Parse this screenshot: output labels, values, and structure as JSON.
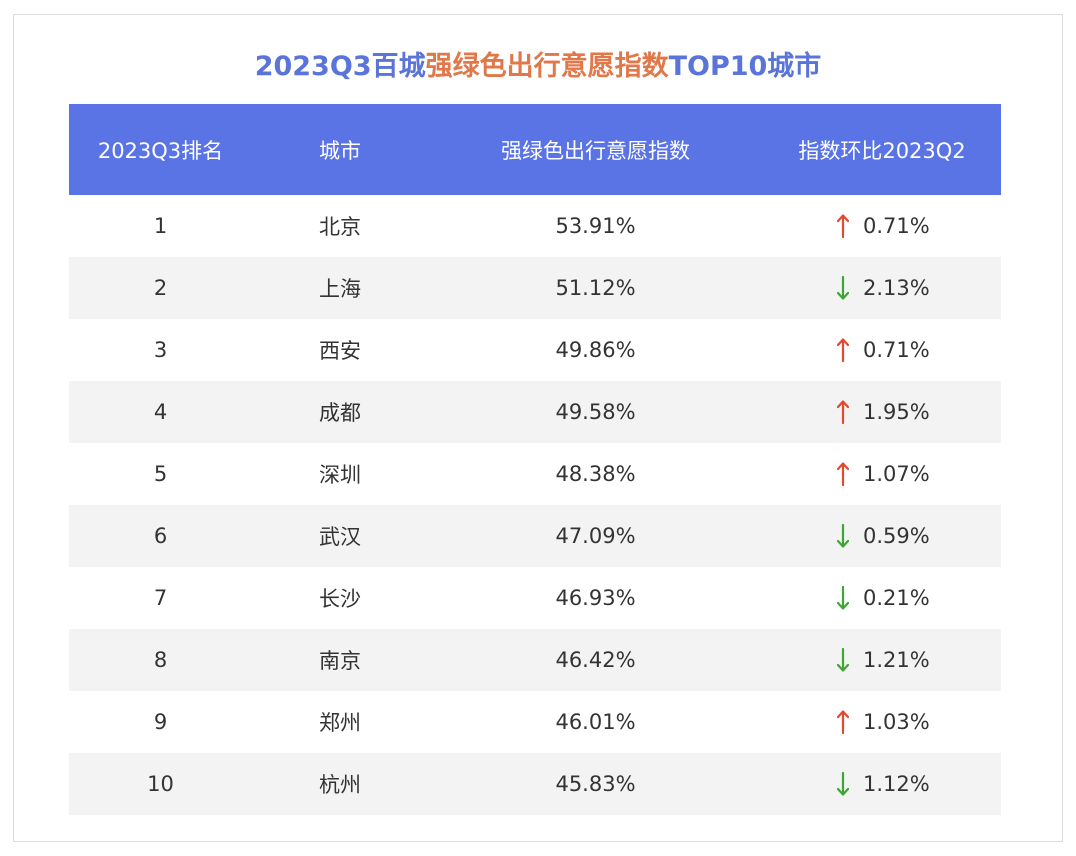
{
  "chart_data": {
    "type": "table",
    "title_parts": [
      {
        "text": "2023Q3百城",
        "color": "blue"
      },
      {
        "text": "强绿色出行意愿指数",
        "color": "orange"
      },
      {
        "text": "TOP10城市",
        "color": "blue"
      }
    ],
    "columns": [
      "2023Q3排名",
      "城市",
      "强绿色出行意愿指数",
      "指数环比2023Q2"
    ],
    "rows": [
      {
        "rank": "1",
        "city": "北京",
        "index": "53.91%",
        "direction": "up",
        "change": "0.71%"
      },
      {
        "rank": "2",
        "city": "上海",
        "index": "51.12%",
        "direction": "down",
        "change": "2.13%"
      },
      {
        "rank": "3",
        "city": "西安",
        "index": "49.86%",
        "direction": "up",
        "change": "0.71%"
      },
      {
        "rank": "4",
        "city": "成都",
        "index": "49.58%",
        "direction": "up",
        "change": "1.95%"
      },
      {
        "rank": "5",
        "city": "深圳",
        "index": "48.38%",
        "direction": "up",
        "change": "1.07%"
      },
      {
        "rank": "6",
        "city": "武汉",
        "index": "47.09%",
        "direction": "down",
        "change": "0.59%"
      },
      {
        "rank": "7",
        "city": "长沙",
        "index": "46.93%",
        "direction": "down",
        "change": "0.21%"
      },
      {
        "rank": "8",
        "city": "南京",
        "index": "46.42%",
        "direction": "down",
        "change": "1.21%"
      },
      {
        "rank": "9",
        "city": "郑州",
        "index": "46.01%",
        "direction": "up",
        "change": "1.03%"
      },
      {
        "rank": "10",
        "city": "杭州",
        "index": "45.83%",
        "direction": "down",
        "change": "1.12%"
      }
    ]
  },
  "colors": {
    "title_blue": "#5a74d9",
    "title_orange": "#e0784a",
    "header_bg": "#5a74e6",
    "arrow_up": "#e2492f",
    "arrow_down": "#3fa535",
    "row_alt": "#f3f3f3"
  }
}
